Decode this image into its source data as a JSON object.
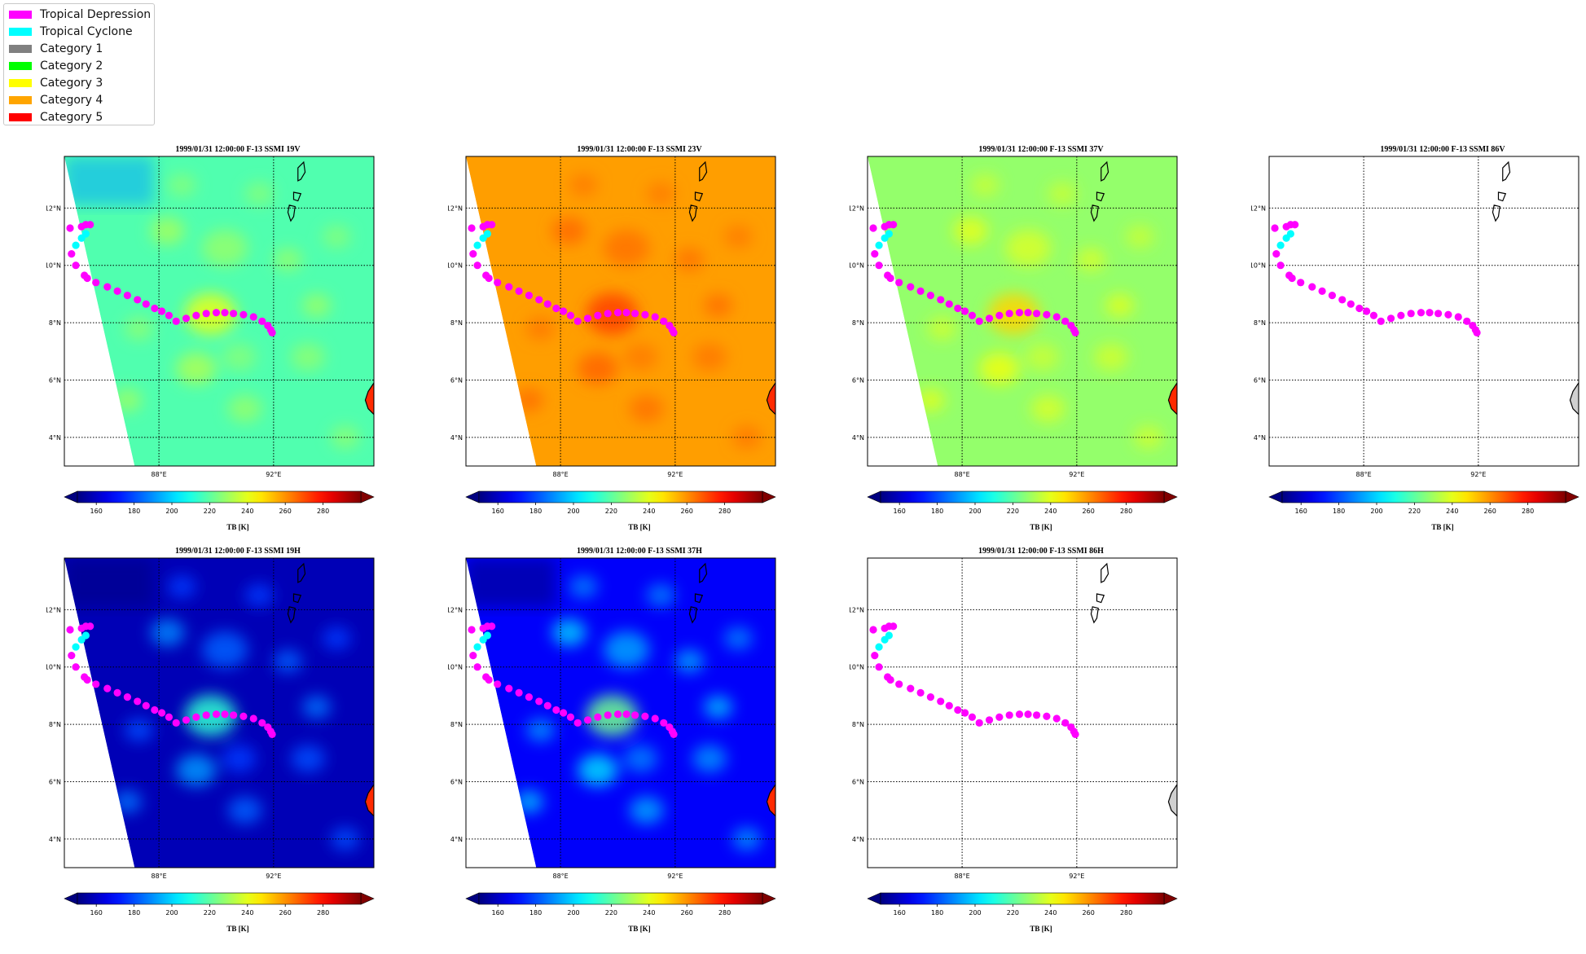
{
  "legend": {
    "items": [
      {
        "label": "Tropical Depression",
        "color": "#ff00ff"
      },
      {
        "label": "Tropical Cyclone",
        "color": "#00ffff"
      },
      {
        "label": "Category 1",
        "color": "#808080"
      },
      {
        "label": "Category 2",
        "color": "#00ff00"
      },
      {
        "label": "Category 3",
        "color": "#ffff00"
      },
      {
        "label": "Category 4",
        "color": "#ffa500"
      },
      {
        "label": "Category 5",
        "color": "#ff0000"
      }
    ]
  },
  "panels": [
    {
      "title": "1999/01/31 12:00:00  F-13 SSMI 19V",
      "channel": "19V",
      "has_data": true,
      "base_tb": 218
    },
    {
      "title": "1999/01/31 12:00:00  F-13 SSMI 23V",
      "channel": "23V",
      "has_data": true,
      "base_tb": 258
    },
    {
      "title": "1999/01/31 12:00:00  F-13 SSMI 37V",
      "channel": "37V",
      "has_data": true,
      "base_tb": 228
    },
    {
      "title": "1999/01/31 12:00:00  F-13 SSMI 86V",
      "channel": "86V",
      "has_data": false,
      "base_tb": null
    },
    {
      "title": "1999/01/31 12:00:00  F-13 SSMI 19H",
      "channel": "19H",
      "has_data": true,
      "base_tb": 158
    },
    {
      "title": "1999/01/31 12:00:00  F-13 SSMI 37H",
      "channel": "37H",
      "has_data": true,
      "base_tb": 168
    },
    {
      "title": "1999/01/31 12:00:00  F-13 SSMI 86H",
      "channel": "86H",
      "has_data": false,
      "base_tb": null
    }
  ],
  "map": {
    "lat_range": [
      3,
      13.8
    ],
    "lon_range": [
      84.7,
      95.5
    ],
    "lat_ticks": [
      4,
      6,
      8,
      10,
      12
    ],
    "lat_tick_labels": [
      "4°N",
      "6°N",
      "8°N",
      "10°N",
      "12°N"
    ],
    "lon_ticks": [
      88,
      92
    ],
    "lon_tick_labels": [
      "88°E",
      "92°E"
    ]
  },
  "colorbar": {
    "label": "TB [K]",
    "range": [
      150,
      300
    ],
    "ticks": [
      160,
      180,
      200,
      220,
      240,
      260,
      280
    ],
    "tick_labels": [
      "160",
      "180",
      "200",
      "220",
      "240",
      "260",
      "280"
    ],
    "colormap": "jet"
  },
  "track": {
    "points": [
      {
        "lon": 84.9,
        "lat": 11.3,
        "cat": "Tropical Depression"
      },
      {
        "lon": 85.1,
        "lat": 10.7,
        "cat": "Tropical Cyclone"
      },
      {
        "lon": 85.3,
        "lat": 10.95,
        "cat": "Tropical Cyclone"
      },
      {
        "lon": 85.45,
        "lat": 11.1,
        "cat": "Tropical Cyclone"
      },
      {
        "lon": 85.3,
        "lat": 11.35,
        "cat": "Tropical Depression"
      },
      {
        "lon": 85.45,
        "lat": 11.42,
        "cat": "Tropical Depression"
      },
      {
        "lon": 85.6,
        "lat": 11.42,
        "cat": "Tropical Depression"
      },
      {
        "lon": 84.95,
        "lat": 10.4,
        "cat": "Tropical Depression"
      },
      {
        "lon": 85.1,
        "lat": 10.0,
        "cat": "Tropical Depression"
      },
      {
        "lon": 85.4,
        "lat": 9.65,
        "cat": "Tropical Depression"
      },
      {
        "lon": 85.5,
        "lat": 9.55,
        "cat": "Tropical Depression"
      },
      {
        "lon": 85.8,
        "lat": 9.4,
        "cat": "Tropical Depression"
      },
      {
        "lon": 86.2,
        "lat": 9.25,
        "cat": "Tropical Depression"
      },
      {
        "lon": 86.55,
        "lat": 9.1,
        "cat": "Tropical Depression"
      },
      {
        "lon": 86.9,
        "lat": 8.95,
        "cat": "Tropical Depression"
      },
      {
        "lon": 87.25,
        "lat": 8.8,
        "cat": "Tropical Depression"
      },
      {
        "lon": 87.55,
        "lat": 8.65,
        "cat": "Tropical Depression"
      },
      {
        "lon": 87.85,
        "lat": 8.5,
        "cat": "Tropical Depression"
      },
      {
        "lon": 88.1,
        "lat": 8.4,
        "cat": "Tropical Depression"
      },
      {
        "lon": 88.35,
        "lat": 8.25,
        "cat": "Tropical Depression"
      },
      {
        "lon": 88.6,
        "lat": 8.05,
        "cat": "Tropical Depression"
      },
      {
        "lon": 88.95,
        "lat": 8.15,
        "cat": "Tropical Depression"
      },
      {
        "lon": 89.3,
        "lat": 8.25,
        "cat": "Tropical Depression"
      },
      {
        "lon": 89.65,
        "lat": 8.32,
        "cat": "Tropical Depression"
      },
      {
        "lon": 90.0,
        "lat": 8.35,
        "cat": "Tropical Depression"
      },
      {
        "lon": 90.3,
        "lat": 8.35,
        "cat": "Tropical Depression"
      },
      {
        "lon": 90.6,
        "lat": 8.32,
        "cat": "Tropical Depression"
      },
      {
        "lon": 90.95,
        "lat": 8.28,
        "cat": "Tropical Depression"
      },
      {
        "lon": 91.3,
        "lat": 8.2,
        "cat": "Tropical Depression"
      },
      {
        "lon": 91.6,
        "lat": 8.05,
        "cat": "Tropical Depression"
      },
      {
        "lon": 91.8,
        "lat": 7.9,
        "cat": "Tropical Depression"
      },
      {
        "lon": 91.9,
        "lat": 7.75,
        "cat": "Tropical Depression"
      },
      {
        "lon": 91.95,
        "lat": 7.65,
        "cat": "Tropical Depression"
      }
    ]
  }
}
